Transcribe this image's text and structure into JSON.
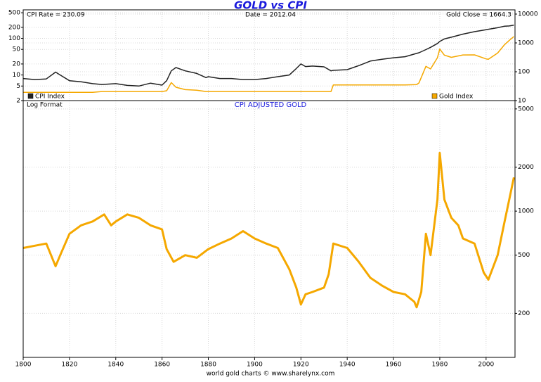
{
  "title": "GOLD vs CPI",
  "footer": "world gold charts © www.sharelynx.com",
  "chart_data": [
    {
      "type": "line",
      "log": true,
      "grid": true,
      "annotations": [
        "CPI Rate = 230.09",
        "Date = 2012.04",
        "Gold Close = 1664.3"
      ],
      "xlim": [
        1800,
        2012.5
      ],
      "ylim": [
        2,
        600
      ],
      "yticks": [
        2,
        5,
        10,
        20,
        50,
        100,
        200,
        500
      ],
      "y2lim": [
        10,
        14000
      ],
      "y2ticks": [
        10,
        100,
        1000,
        10000
      ],
      "x": [
        1800,
        1805,
        1810,
        1814,
        1816,
        1820,
        1825,
        1830,
        1834,
        1840,
        1845,
        1850,
        1855,
        1860,
        1862,
        1864,
        1866,
        1870,
        1875,
        1879,
        1880,
        1885,
        1890,
        1895,
        1900,
        1905,
        1910,
        1915,
        1918,
        1920,
        1922,
        1925,
        1930,
        1933,
        1934,
        1940,
        1945,
        1950,
        1955,
        1960,
        1965,
        1970,
        1971,
        1974,
        1976,
        1979,
        1980,
        1982,
        1985,
        1990,
        1995,
        2000,
        2001,
        2005,
        2008,
        2010,
        2012
      ],
      "series": [
        {
          "name": "CPI Index",
          "color": "#222222",
          "axis": "y",
          "values": [
            8,
            7.5,
            7.8,
            12,
            10,
            7,
            6.5,
            5.8,
            5.5,
            5.8,
            5.2,
            5,
            6,
            5.3,
            7,
            13,
            16,
            13,
            11,
            8.5,
            9,
            8,
            8,
            7.5,
            7.5,
            8,
            9,
            10,
            15,
            20,
            17,
            17.5,
            16.7,
            13,
            13.4,
            14,
            18,
            24,
            26.8,
            29.6,
            31.5,
            38.8,
            40.5,
            49.3,
            56.9,
            72.6,
            82.4,
            96.5,
            107.6,
            130.7,
            152.4,
            172.2,
            177.1,
            195.3,
            215.3,
            218.1,
            230.09
          ]
        },
        {
          "name": "Gold Index",
          "color": "#f5a800",
          "axis": "y2",
          "values": [
            19.4,
            19.4,
            19.4,
            19.4,
            19.4,
            19.4,
            19.4,
            19.4,
            20.67,
            20.67,
            20.67,
            20.67,
            20.67,
            20.67,
            22,
            42,
            29,
            24,
            23,
            20.67,
            20.67,
            20.67,
            20.67,
            20.67,
            20.67,
            20.67,
            20.67,
            20.67,
            20.67,
            20.67,
            20.67,
            20.67,
            20.67,
            20.67,
            35,
            35,
            35,
            35,
            35,
            35,
            35,
            36,
            41,
            154,
            125,
            307,
            612,
            376,
            317,
            383,
            384,
            279,
            271,
            445,
            872,
            1225,
            1664.3
          ]
        }
      ]
    },
    {
      "type": "line",
      "log": true,
      "grid": true,
      "title": "CPI ADJUSTED GOLD",
      "annotations": [
        "Log Format"
      ],
      "xlim": [
        1800,
        2012.5
      ],
      "xticks": [
        1800,
        1820,
        1840,
        1860,
        1880,
        1900,
        1920,
        1940,
        1960,
        1980,
        2000
      ],
      "y2lim": [
        100,
        5700
      ],
      "y2ticks": [
        200,
        500,
        1000,
        2000,
        5000
      ],
      "x": [
        1800,
        1805,
        1810,
        1814,
        1816,
        1820,
        1825,
        1830,
        1835,
        1838,
        1840,
        1845,
        1850,
        1855,
        1860,
        1862,
        1865,
        1870,
        1875,
        1880,
        1885,
        1890,
        1895,
        1900,
        1905,
        1910,
        1915,
        1918,
        1920,
        1922,
        1925,
        1930,
        1932,
        1934,
        1940,
        1945,
        1950,
        1955,
        1960,
        1965,
        1969,
        1970,
        1972,
        1974,
        1976,
        1979,
        1980,
        1982,
        1985,
        1988,
        1990,
        1995,
        1999,
        2001,
        2005,
        2008,
        2010,
        2012
      ],
      "series": [
        {
          "color": "#f5a800",
          "axis": "y2",
          "values": [
            560,
            580,
            600,
            420,
            500,
            700,
            800,
            850,
            950,
            800,
            850,
            950,
            900,
            800,
            750,
            550,
            450,
            500,
            480,
            550,
            600,
            650,
            730,
            650,
            600,
            560,
            400,
            300,
            230,
            270,
            280,
            300,
            370,
            600,
            560,
            450,
            350,
            310,
            280,
            270,
            240,
            220,
            280,
            700,
            500,
            1200,
            2500,
            1200,
            900,
            800,
            650,
            600,
            380,
            340,
            500,
            850,
            1200,
            1700
          ]
        }
      ]
    }
  ]
}
